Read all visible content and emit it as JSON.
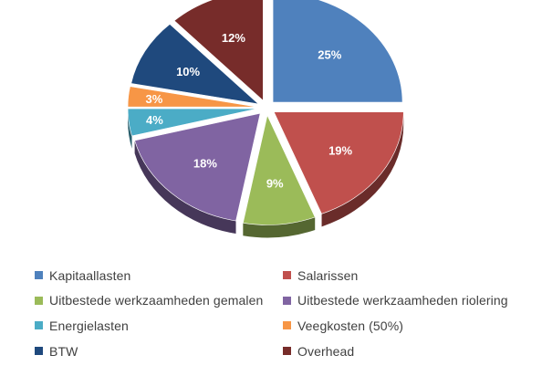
{
  "chart_data": {
    "type": "pie",
    "style": "3d-exploded",
    "legend_position": "bottom",
    "slices": [
      {
        "name": "Kapitaallasten",
        "value": 25,
        "label": "25%",
        "color": "#4F81BD"
      },
      {
        "name": "Salarissen",
        "value": 19,
        "label": "19%",
        "color": "#C0504D"
      },
      {
        "name": "Uitbestede werkzaamheden gemalen",
        "value": 9,
        "label": "9%",
        "color": "#9BBB59"
      },
      {
        "name": "Uitbestede werkzaamheden riolering",
        "value": 18,
        "label": "18%",
        "color": "#8064A2"
      },
      {
        "name": "Energielasten",
        "value": 4,
        "label": "4%",
        "color": "#4BACC6"
      },
      {
        "name": "Veegkosten (50%)",
        "value": 3,
        "label": "3%",
        "color": "#F79646"
      },
      {
        "name": "BTW",
        "value": 10,
        "label": "10%",
        "color": "#1F497D"
      },
      {
        "name": "Overhead",
        "value": 12,
        "label": "12%",
        "color": "#772C2A"
      }
    ]
  }
}
